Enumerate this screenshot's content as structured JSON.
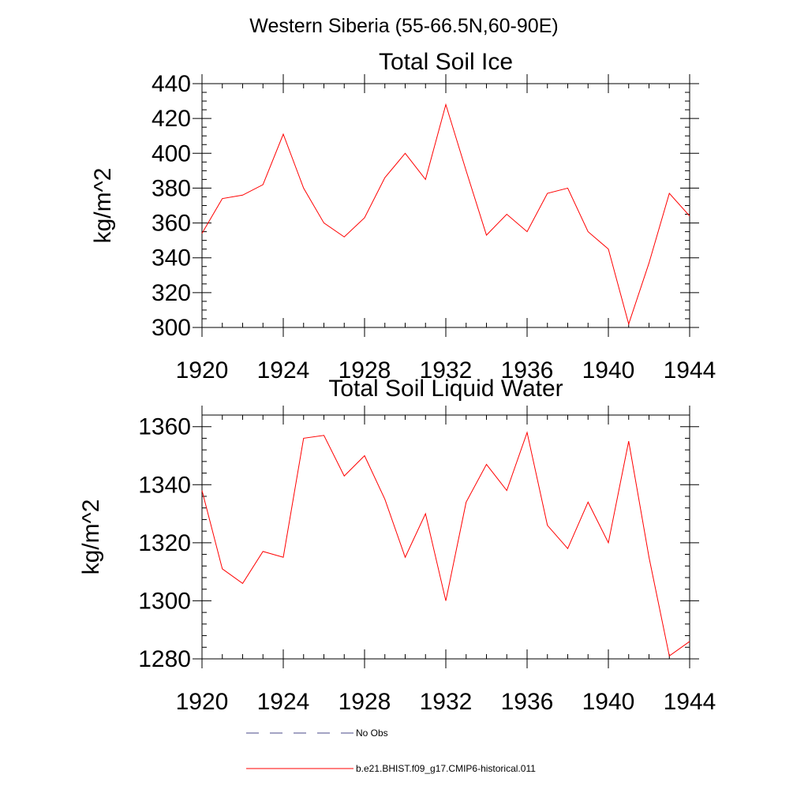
{
  "figure": {
    "suptitle": "Western Siberia (55-66.5N,60-90E)"
  },
  "colors": {
    "model": "#ff0000",
    "obs": "#4a4a8a",
    "axis": "#000000"
  },
  "legend": {
    "items": [
      {
        "label": "No Obs",
        "style": "dashed",
        "color": "#4a4a8a"
      },
      {
        "label": "b.e21.BHIST.f09_g17.CMIP6-historical.011",
        "style": "solid",
        "color": "#ff0000"
      }
    ]
  },
  "chart_data": [
    {
      "type": "line",
      "title": "Total Soil Ice",
      "xlabel": "",
      "ylabel": "kg/m^2",
      "xlim": [
        1920,
        1944
      ],
      "ylim": [
        300,
        440
      ],
      "xticks": [
        1920,
        1924,
        1928,
        1932,
        1936,
        1940,
        1944
      ],
      "yticks": [
        300,
        320,
        340,
        360,
        380,
        400,
        420,
        440
      ],
      "x_minor_step": 1,
      "y_minor_step": 5,
      "grid": false,
      "series": [
        {
          "name": "b.e21.BHIST.f09_g17.CMIP6-historical.011",
          "color": "#ff0000",
          "x": [
            1920,
            1921,
            1922,
            1923,
            1924,
            1925,
            1926,
            1927,
            1928,
            1929,
            1930,
            1931,
            1932,
            1933,
            1934,
            1935,
            1936,
            1937,
            1938,
            1939,
            1940,
            1941,
            1942,
            1943,
            1944
          ],
          "y": [
            354,
            374,
            376,
            382,
            411,
            380,
            360,
            352,
            363,
            386,
            400,
            385,
            428,
            390,
            353,
            365,
            355,
            377,
            380,
            355,
            345,
            302,
            337,
            377,
            364
          ]
        }
      ]
    },
    {
      "type": "line",
      "title": "Total Soil Liquid Water",
      "xlabel": "",
      "ylabel": "kg/m^2",
      "xlim": [
        1920,
        1944
      ],
      "ylim": [
        1280,
        1364
      ],
      "xticks": [
        1920,
        1924,
        1928,
        1932,
        1936,
        1940,
        1944
      ],
      "yticks": [
        1280,
        1300,
        1320,
        1340,
        1360
      ],
      "x_minor_step": 1,
      "y_minor_step": 4,
      "grid": false,
      "series": [
        {
          "name": "b.e21.BHIST.f09_g17.CMIP6-historical.011",
          "color": "#ff0000",
          "x": [
            1920,
            1921,
            1922,
            1923,
            1924,
            1925,
            1926,
            1927,
            1928,
            1929,
            1930,
            1931,
            1932,
            1933,
            1934,
            1935,
            1936,
            1937,
            1938,
            1939,
            1940,
            1941,
            1942,
            1943,
            1944
          ],
          "y": [
            1338,
            1311,
            1306,
            1317,
            1315,
            1356,
            1357,
            1343,
            1350,
            1335,
            1315,
            1330,
            1300,
            1334,
            1347,
            1338,
            1358,
            1326,
            1318,
            1334,
            1320,
            1355,
            1315,
            1281,
            1286
          ]
        }
      ]
    }
  ]
}
